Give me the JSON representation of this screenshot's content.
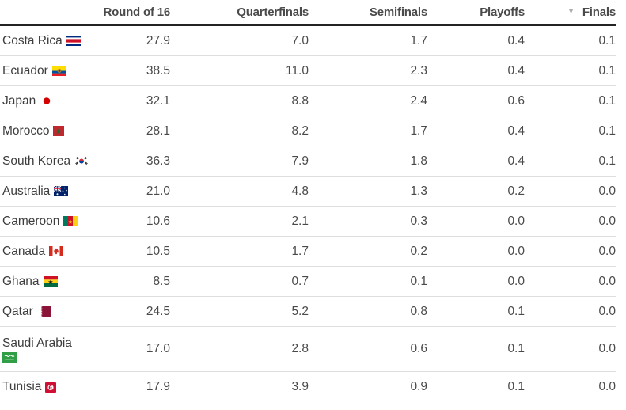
{
  "table": {
    "sort_icon": "▼",
    "columns": [
      {
        "label": "Round of 16",
        "sorted": false
      },
      {
        "label": "Quarterfinals",
        "sorted": false
      },
      {
        "label": "Semifinals",
        "sorted": false
      },
      {
        "label": "Playoffs",
        "sorted": false
      },
      {
        "label": "Finals",
        "sorted": true
      }
    ],
    "rows": [
      {
        "country": "Costa Rica",
        "flag": "costa-rica",
        "flag_wraps": false,
        "values": [
          "27.9",
          "7.0",
          "1.7",
          "0.4",
          "0.1"
        ]
      },
      {
        "country": "Ecuador",
        "flag": "ecuador",
        "flag_wraps": false,
        "values": [
          "38.5",
          "11.0",
          "2.3",
          "0.4",
          "0.1"
        ]
      },
      {
        "country": "Japan",
        "flag": "japan",
        "flag_wraps": false,
        "values": [
          "32.1",
          "8.8",
          "2.4",
          "0.6",
          "0.1"
        ]
      },
      {
        "country": "Morocco",
        "flag": "morocco",
        "flag_wraps": false,
        "values": [
          "28.1",
          "8.2",
          "1.7",
          "0.4",
          "0.1"
        ]
      },
      {
        "country": "South Korea",
        "flag": "south-korea",
        "flag_wraps": false,
        "values": [
          "36.3",
          "7.9",
          "1.8",
          "0.4",
          "0.1"
        ]
      },
      {
        "country": "Australia",
        "flag": "australia",
        "flag_wraps": false,
        "values": [
          "21.0",
          "4.8",
          "1.3",
          "0.2",
          "0.0"
        ]
      },
      {
        "country": "Cameroon",
        "flag": "cameroon",
        "flag_wraps": false,
        "values": [
          "10.6",
          "2.1",
          "0.3",
          "0.0",
          "0.0"
        ]
      },
      {
        "country": "Canada",
        "flag": "canada",
        "flag_wraps": false,
        "values": [
          "10.5",
          "1.7",
          "0.2",
          "0.0",
          "0.0"
        ]
      },
      {
        "country": "Ghana",
        "flag": "ghana",
        "flag_wraps": false,
        "values": [
          "8.5",
          "0.7",
          "0.1",
          "0.0",
          "0.0"
        ]
      },
      {
        "country": "Qatar",
        "flag": "qatar",
        "flag_wraps": false,
        "values": [
          "24.5",
          "5.2",
          "0.8",
          "0.1",
          "0.0"
        ]
      },
      {
        "country": "Saudi Arabia",
        "flag": "saudi-arabia",
        "flag_wraps": true,
        "values": [
          "17.0",
          "2.8",
          "0.6",
          "0.1",
          "0.0"
        ]
      },
      {
        "country": "Tunisia",
        "flag": "tunisia",
        "flag_wraps": false,
        "values": [
          "17.9",
          "3.9",
          "0.9",
          "0.1",
          "0.0"
        ]
      }
    ]
  },
  "chart_data": {
    "type": "table",
    "columns": [
      "Round of 16",
      "Quarterfinals",
      "Semifinals",
      "Playoffs",
      "Finals"
    ],
    "sorted_by": "Finals",
    "sort_direction": "desc",
    "rows": [
      {
        "country": "Costa Rica",
        "values": [
          27.9,
          7.0,
          1.7,
          0.4,
          0.1
        ]
      },
      {
        "country": "Ecuador",
        "values": [
          38.5,
          11.0,
          2.3,
          0.4,
          0.1
        ]
      },
      {
        "country": "Japan",
        "values": [
          32.1,
          8.8,
          2.4,
          0.6,
          0.1
        ]
      },
      {
        "country": "Morocco",
        "values": [
          28.1,
          8.2,
          1.7,
          0.4,
          0.1
        ]
      },
      {
        "country": "South Korea",
        "values": [
          36.3,
          7.9,
          1.8,
          0.4,
          0.1
        ]
      },
      {
        "country": "Australia",
        "values": [
          21.0,
          4.8,
          1.3,
          0.2,
          0.0
        ]
      },
      {
        "country": "Cameroon",
        "values": [
          10.6,
          2.1,
          0.3,
          0.0,
          0.0
        ]
      },
      {
        "country": "Canada",
        "values": [
          10.5,
          1.7,
          0.2,
          0.0,
          0.0
        ]
      },
      {
        "country": "Ghana",
        "values": [
          8.5,
          0.7,
          0.1,
          0.0,
          0.0
        ]
      },
      {
        "country": "Qatar",
        "values": [
          24.5,
          5.2,
          0.8,
          0.1,
          0.0
        ]
      },
      {
        "country": "Saudi Arabia",
        "values": [
          17.0,
          2.8,
          0.6,
          0.1,
          0.0
        ]
      },
      {
        "country": "Tunisia",
        "values": [
          17.9,
          3.9,
          0.9,
          0.1,
          0.0
        ]
      }
    ]
  }
}
